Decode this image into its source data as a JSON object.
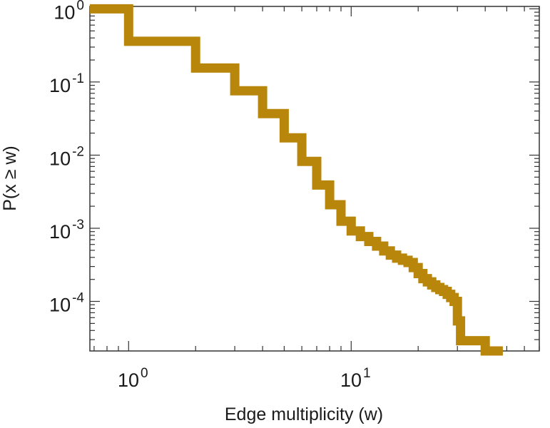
{
  "chart_data": {
    "type": "line",
    "style": "step",
    "scale": {
      "x": "log",
      "y": "log"
    },
    "title": "",
    "xlabel": "Edge multiplicity (w)",
    "ylabel": "P(x ≥ w)",
    "xlim": [
      0.67,
      70
    ],
    "ylim": [
      2.1e-05,
      1.08
    ],
    "grid": false,
    "line_color": "#b8860b",
    "x_ticks": [
      {
        "value": 1,
        "base": "10",
        "exp": "0"
      },
      {
        "value": 10,
        "base": "10",
        "exp": "1"
      }
    ],
    "y_ticks": [
      {
        "value": 1,
        "base": "10",
        "exp": "0"
      },
      {
        "value": 0.1,
        "base": "10",
        "exp": "-1"
      },
      {
        "value": 0.01,
        "base": "10",
        "exp": "-2"
      },
      {
        "value": 0.001,
        "base": "10",
        "exp": "-3"
      },
      {
        "value": 0.0001,
        "base": "10",
        "exp": "-4"
      }
    ],
    "series": [
      {
        "x": [
          1,
          2,
          3,
          4,
          5,
          6,
          7,
          8,
          9,
          10,
          11,
          12,
          13,
          14,
          15,
          16,
          17,
          18,
          19,
          20,
          21,
          22,
          23,
          24,
          25,
          26,
          27,
          28,
          29,
          30,
          31,
          40,
          48
        ],
        "y": [
          1.0,
          0.36,
          0.155,
          0.076,
          0.037,
          0.0172,
          0.0082,
          0.0039,
          0.0021,
          0.00125,
          0.00092,
          0.00077,
          0.00066,
          0.00057,
          0.00049,
          0.00043,
          0.00039,
          0.000365,
          0.00034,
          0.00029,
          0.00024,
          0.000205,
          0.000185,
          0.000168,
          0.000155,
          0.000145,
          0.000137,
          0.000125,
          0.000113,
          0.0001,
          5.4e-05,
          2.9e-05,
          2.1e-05
        ]
      }
    ]
  }
}
